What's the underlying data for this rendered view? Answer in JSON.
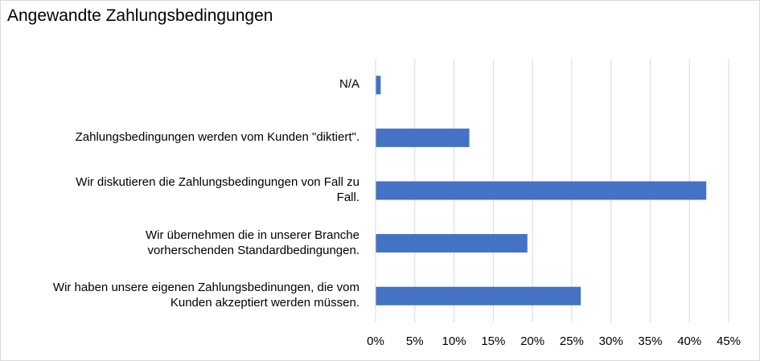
{
  "chart_data": {
    "type": "bar",
    "orientation": "horizontal",
    "title": "Angewandte Zahlungsbedingungen",
    "xlabel": "",
    "ylabel": "",
    "categories": [
      "N/A",
      "Zahlungsbedingungen werden vom Kunden \"diktiert\".",
      "Wir diskutieren die Zahlungsbedingungen von Fall zu Fall.",
      "Wir übernehmen die in unserer Branche vorherschenden Standardbedingungen.",
      "Wir haben unsere eigenen Zahlungsbedinungen, die vom Kunden akzeptiert werden müssen."
    ],
    "category_lines": [
      [
        "N/A"
      ],
      [
        "Zahlungsbedingungen werden vom Kunden \"diktiert\"."
      ],
      [
        "Wir diskutieren die Zahlungsbedingungen von Fall zu",
        "Fall."
      ],
      [
        "Wir übernehmen die in unserer Branche",
        "vorherschenden Standardbedingungen."
      ],
      [
        "Wir haben unsere eigenen Zahlungsbedinungen, die vom",
        "Kunden akzeptiert werden müssen."
      ]
    ],
    "values": [
      0.6,
      11.9,
      42.1,
      19.3,
      26.1
    ],
    "xlim": [
      0,
      45
    ],
    "ticks": [
      0,
      5,
      10,
      15,
      20,
      25,
      30,
      35,
      40,
      45
    ],
    "tick_labels": [
      "0%",
      "5%",
      "10%",
      "15%",
      "20%",
      "25%",
      "30%",
      "35%",
      "40%",
      "45%"
    ],
    "grid": true,
    "legend": "none",
    "colors": {
      "bar": "#4472C4",
      "grid": "#D9D9D9"
    }
  }
}
